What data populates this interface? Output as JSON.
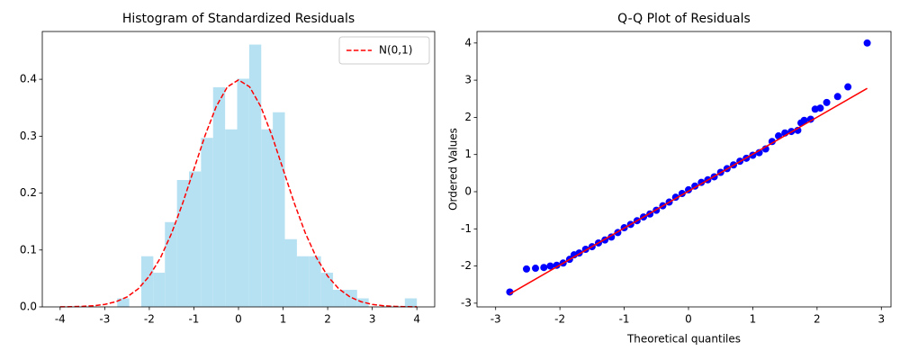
{
  "chart_data": [
    {
      "type": "histogram",
      "title": "Histogram of Standardized Residuals",
      "bins": [
        -2.72,
        -2.45,
        -2.18,
        -1.91,
        -1.65,
        -1.38,
        -1.11,
        -0.84,
        -0.57,
        -0.3,
        -0.03,
        0.24,
        0.51,
        0.77,
        1.04,
        1.31,
        1.58,
        1.85,
        2.12,
        2.39,
        2.66,
        2.92,
        3.19,
        3.46,
        3.73,
        4.0
      ],
      "values": [
        0.015,
        0,
        0.089,
        0.06,
        0.149,
        0.223,
        0.238,
        0.297,
        0.386,
        0.312,
        0.401,
        0.461,
        0.312,
        0.342,
        0.119,
        0.089,
        0.089,
        0.06,
        0.03,
        0.03,
        0.015,
        0,
        0,
        0,
        0.015
      ],
      "color": "#b6e1f2",
      "series": [
        {
          "name": "N(0,1)",
          "color": "#ff0000",
          "style": "dashed",
          "x": [
            -4,
            -3.75,
            -3.5,
            -3.25,
            -3,
            -2.75,
            -2.5,
            -2.25,
            -2,
            -1.75,
            -1.5,
            -1.25,
            -1,
            -0.75,
            -0.5,
            -0.25,
            0,
            0.25,
            0.5,
            0.75,
            1,
            1.25,
            1.5,
            1.75,
            2,
            2.25,
            2.5,
            2.75,
            3,
            3.25,
            3.5,
            3.75,
            4
          ],
          "values": [
            0.0001,
            0.0004,
            0.0009,
            0.002,
            0.0044,
            0.0091,
            0.0175,
            0.0317,
            0.054,
            0.0863,
            0.1295,
            0.1826,
            0.242,
            0.3011,
            0.3521,
            0.3867,
            0.3989,
            0.3867,
            0.3521,
            0.3011,
            0.242,
            0.1826,
            0.1295,
            0.0863,
            0.054,
            0.0317,
            0.0175,
            0.0091,
            0.0044,
            0.002,
            0.0009,
            0.0004,
            0.0001
          ]
        }
      ],
      "xlim": [
        -4.4,
        4.4
      ],
      "xticks": [
        -4,
        -3,
        -2,
        -1,
        0,
        1,
        2,
        3,
        4
      ],
      "ylim": [
        0,
        0.484
      ],
      "yticks": [
        {
          "value": 0,
          "label": "0.0"
        },
        0.1,
        0.2,
        0.3,
        0.4
      ],
      "legend": "upper right"
    },
    {
      "type": "scatter",
      "title": "Q-Q Plot of Residuals",
      "xlabel": "Theoretical quantiles",
      "ylabel": "Ordered Values",
      "series": [
        {
          "color": "#0000ff",
          "style": "markers",
          "x": [
            -2.78,
            -2.52,
            -2.38,
            -2.25,
            -2.15,
            -2.05,
            -1.95,
            -1.85,
            -1.78,
            -1.7,
            -1.6,
            -1.5,
            -1.4,
            -1.3,
            -1.2,
            -1.1,
            -1.0,
            -0.9,
            -0.8,
            -0.7,
            -0.6,
            -0.5,
            -0.4,
            -0.3,
            -0.2,
            -0.1,
            0,
            0.1,
            0.2,
            0.3,
            0.4,
            0.5,
            0.6,
            0.7,
            0.8,
            0.9,
            1.0,
            1.1,
            1.2,
            1.3,
            1.4,
            1.5,
            1.6,
            1.7,
            1.75,
            1.8,
            1.9,
            1.97,
            2.05,
            2.15,
            2.32,
            2.48,
            2.78
          ],
          "values": [
            -2.7,
            -2.08,
            -2.06,
            -2.04,
            -2.0,
            -1.98,
            -1.92,
            -1.82,
            -1.7,
            -1.65,
            -1.55,
            -1.48,
            -1.38,
            -1.3,
            -1.22,
            -1.1,
            -0.97,
            -0.88,
            -0.78,
            -0.68,
            -0.6,
            -0.5,
            -0.38,
            -0.28,
            -0.15,
            -0.05,
            0.05,
            0.15,
            0.25,
            0.32,
            0.4,
            0.52,
            0.62,
            0.72,
            0.82,
            0.9,
            0.98,
            1.05,
            1.15,
            1.35,
            1.5,
            1.58,
            1.62,
            1.65,
            1.85,
            1.92,
            1.95,
            2.22,
            2.25,
            2.4,
            2.56,
            2.82,
            4.0
          ]
        },
        {
          "color": "#ff0000",
          "style": "line",
          "x": [
            -2.78,
            2.78
          ],
          "values": [
            -2.75,
            2.78
          ]
        }
      ],
      "xlim": [
        -3.29,
        3.15
      ],
      "xticks": [
        -3,
        -2,
        -1,
        0,
        1,
        2,
        3
      ],
      "ylim": [
        -3.1,
        4.31
      ],
      "yticks": [
        -3,
        -2,
        -1,
        0,
        1,
        2,
        3,
        4
      ]
    }
  ]
}
